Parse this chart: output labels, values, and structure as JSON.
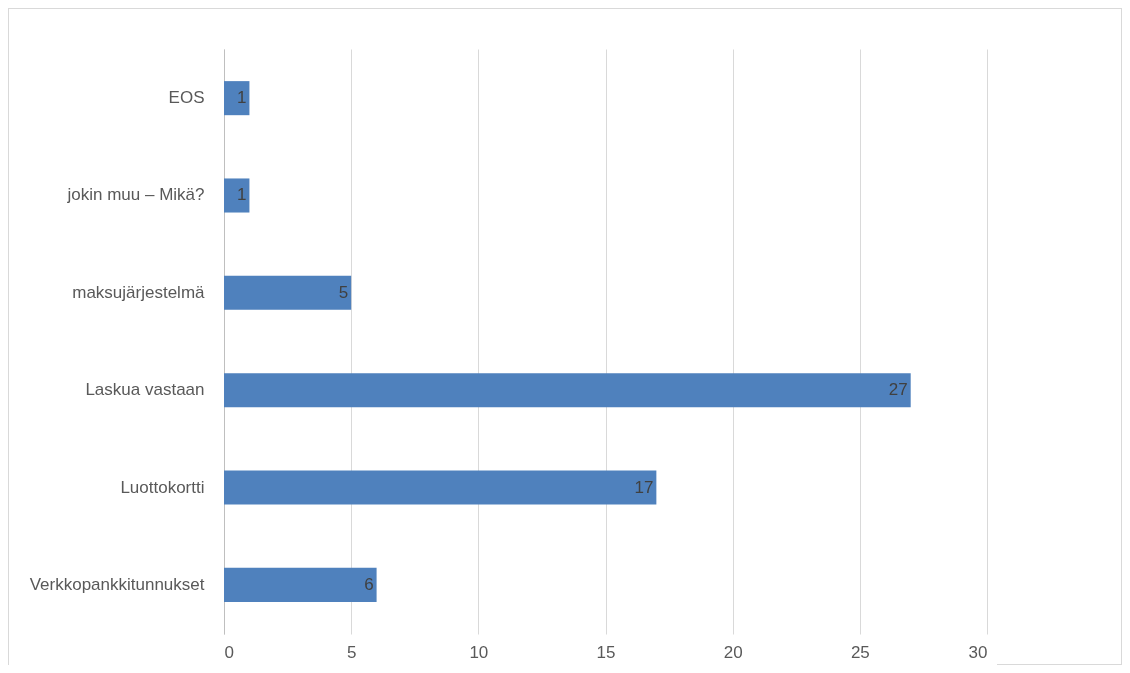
{
  "chart_data": {
    "type": "bar",
    "orientation": "horizontal",
    "categories": [
      "EOS",
      "jokin muu – Mikä?",
      "maksujärjestelmä",
      "Laskua vastaan",
      "Luottokortti",
      "Verkkopankkitunnukset"
    ],
    "values": [
      1,
      1,
      5,
      27,
      17,
      6
    ],
    "color": "#4f81bd",
    "xlim": [
      0,
      30
    ],
    "xticks": [
      0,
      5,
      10,
      15,
      20,
      25,
      30
    ],
    "grid": "x",
    "data_labels": true
  }
}
